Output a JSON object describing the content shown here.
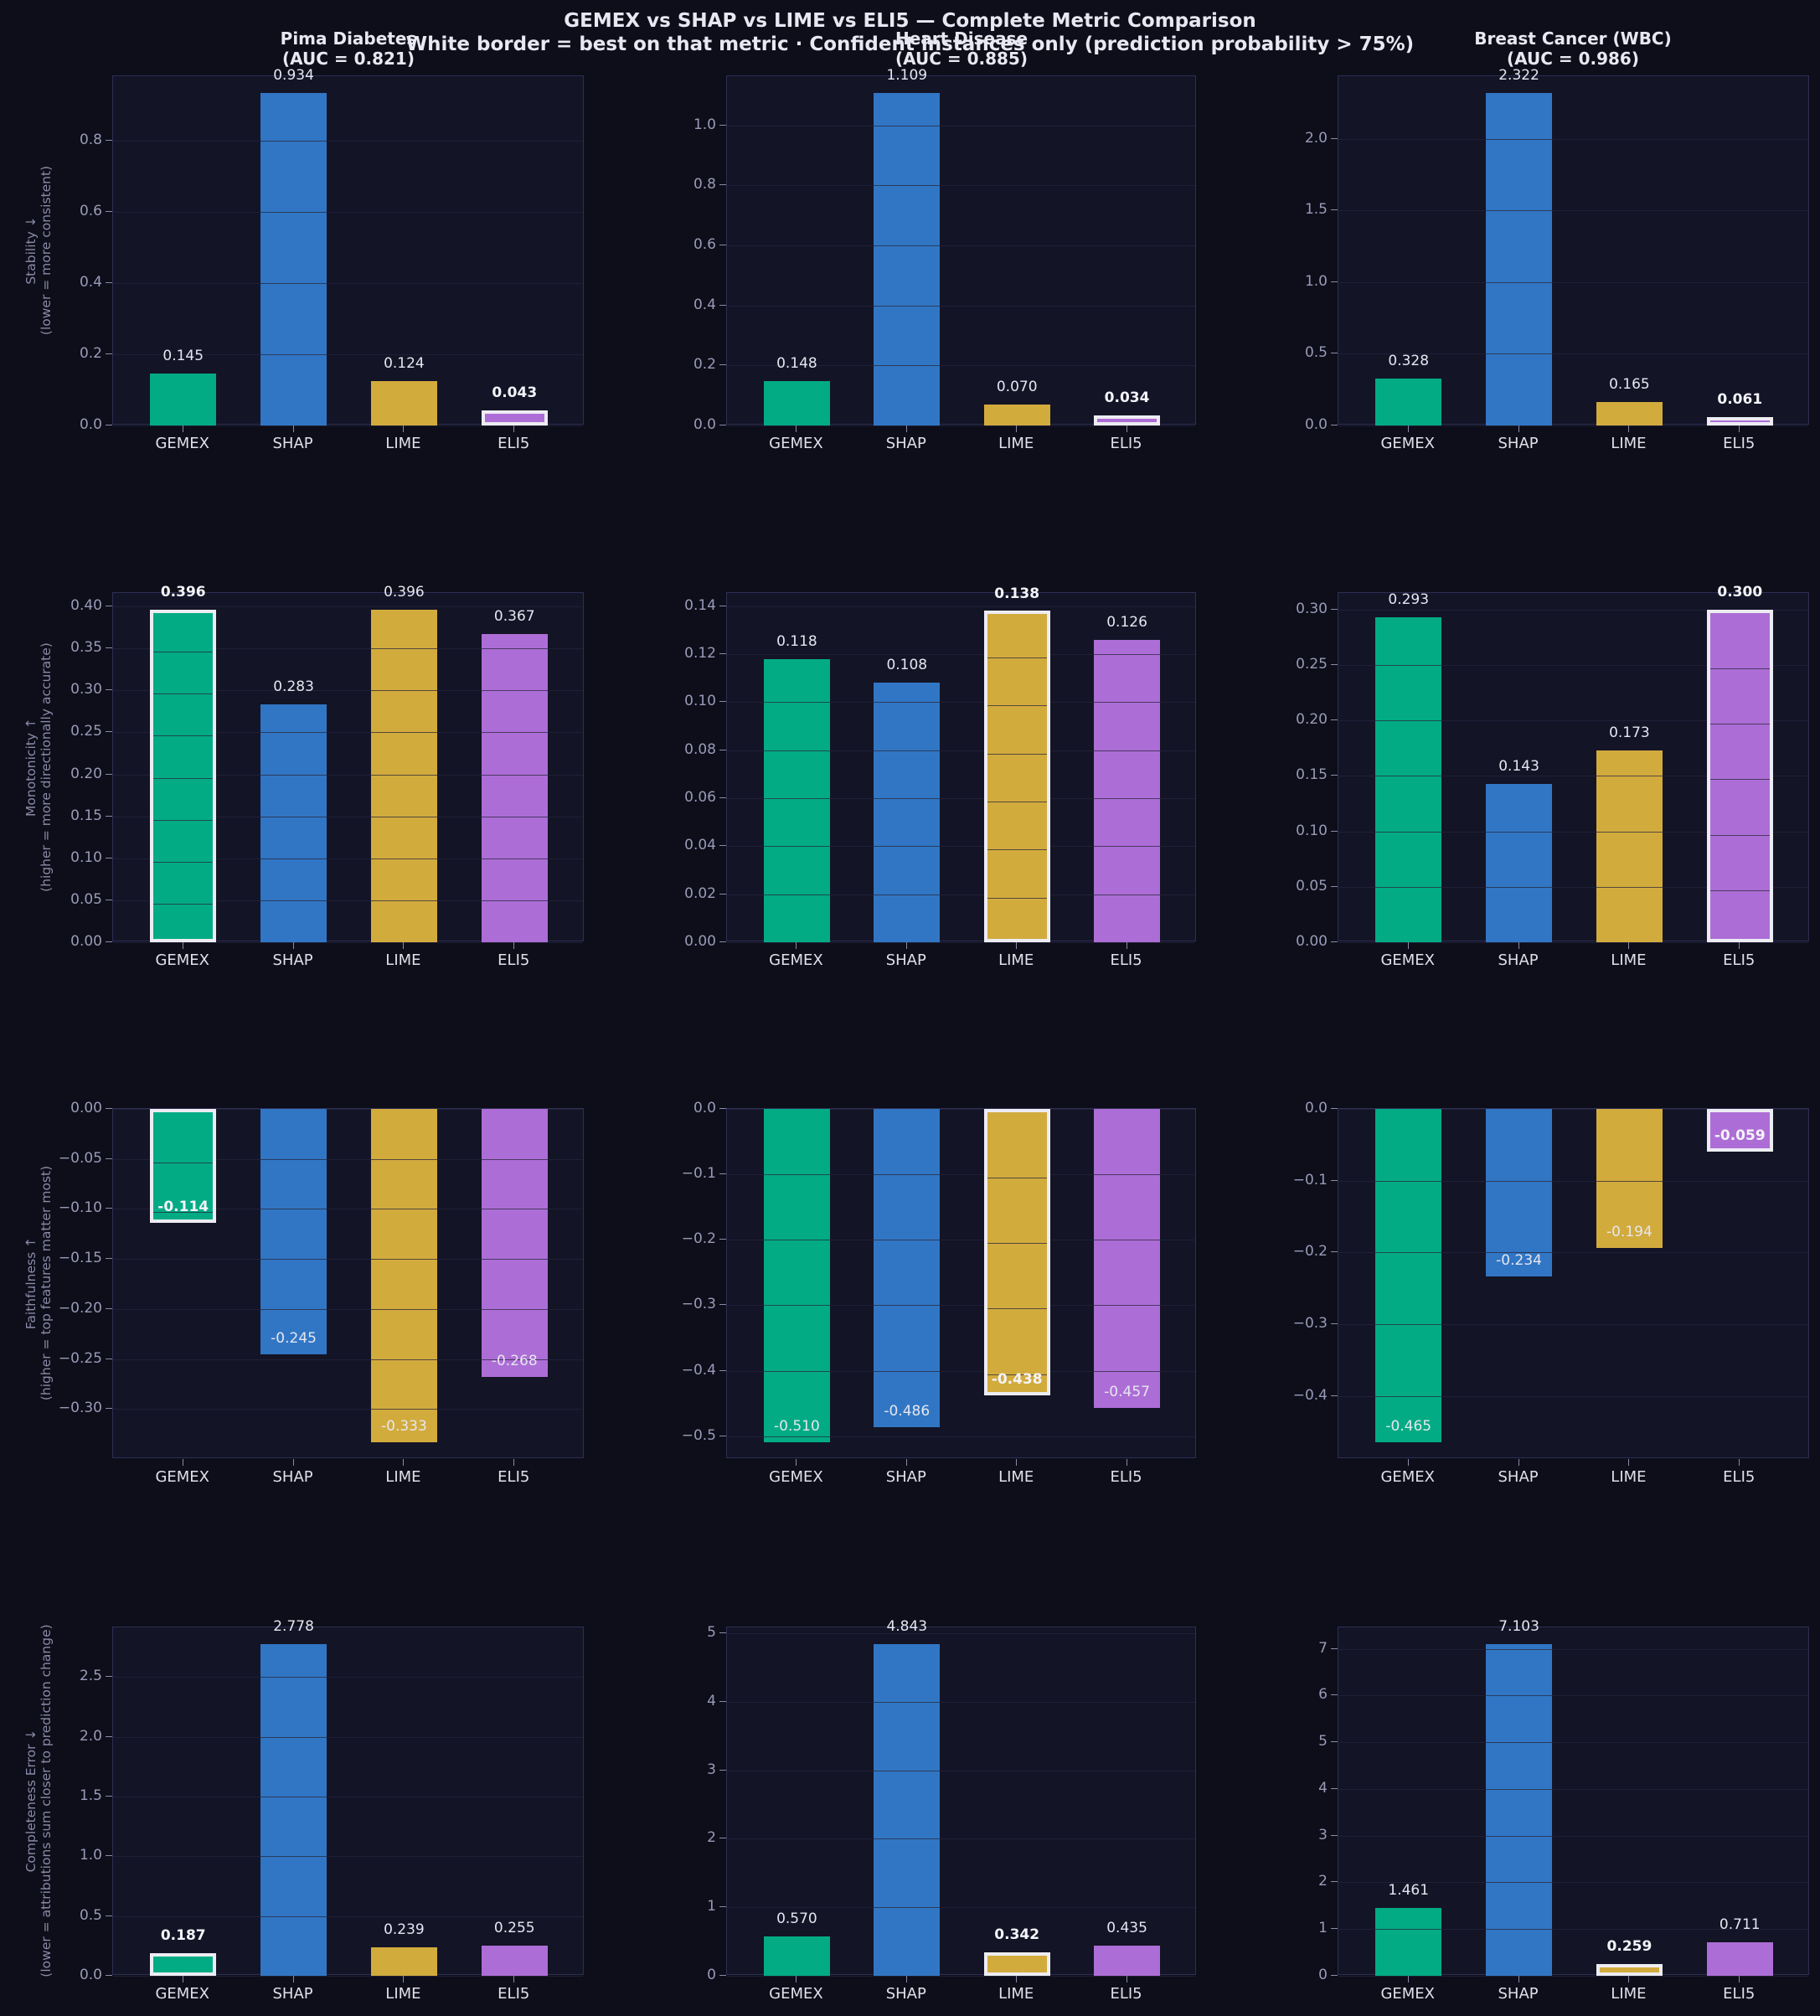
{
  "figure": {
    "title": "GEMEX vs SHAP vs LIME vs ELI5 — Complete Metric Comparison",
    "subtitle": "White border = best on that metric · Confident instances only (prediction probability > 75%)",
    "columns": [
      {
        "title": "Pima Diabetes",
        "auc": "(AUC = 0.821)"
      },
      {
        "title": "Heart Disease",
        "auc": "(AUC = 0.885)"
      },
      {
        "title": "Breast Cancer (WBC)",
        "auc": "(AUC = 0.986)"
      }
    ],
    "methods": [
      "GEMEX",
      "SHAP",
      "LIME",
      "ELI5"
    ],
    "colors": {
      "GEMEX": "#02ab84",
      "SHAP": "#3176c4",
      "LIME": "#d2ab3d",
      "ELI5": "#ad6dd6",
      "best_border": "#ececf2",
      "background": "#0d0e19",
      "axes_bg": "#131426"
    },
    "rows": [
      {
        "metric": "Stability ↓",
        "note": "(lower = more consistent)"
      },
      {
        "metric": "Monotonicity ↑",
        "note": "(higher = more directionally accurate)"
      },
      {
        "metric": "Faithfulness ↑",
        "note": "(higher = top features matter most)"
      },
      {
        "metric": "Completeness Error ↓",
        "note": "(lower = attributions sum closer to prediction change)"
      }
    ]
  },
  "chart_data": [
    {
      "type": "bar",
      "row": 0,
      "col": 0,
      "title": "Pima Diabetes (AUC = 0.821)",
      "ylabel": "Stability ↓ (lower = more consistent)",
      "categories": [
        "GEMEX",
        "SHAP",
        "LIME",
        "ELI5"
      ],
      "values": [
        0.145,
        0.934,
        0.124,
        0.043
      ],
      "labels": [
        "0.145",
        "0.934",
        "0.124",
        "0.043"
      ],
      "best": 3,
      "ylim": [
        0,
        0.98
      ],
      "yticks": [
        0.0,
        0.2,
        0.4,
        0.6,
        0.8
      ],
      "yticklabels": [
        "0.0",
        "0.2",
        "0.4",
        "0.6",
        "0.8"
      ]
    },
    {
      "type": "bar",
      "row": 0,
      "col": 1,
      "title": "Heart Disease (AUC = 0.885)",
      "ylabel": "",
      "categories": [
        "GEMEX",
        "SHAP",
        "LIME",
        "ELI5"
      ],
      "values": [
        0.148,
        1.109,
        0.07,
        0.034
      ],
      "labels": [
        "0.148",
        "1.109",
        "0.070",
        "0.034"
      ],
      "best": 3,
      "ylim": [
        0,
        1.164
      ],
      "yticks": [
        0.0,
        0.2,
        0.4,
        0.6,
        0.8,
        1.0
      ],
      "yticklabels": [
        "0.0",
        "0.2",
        "0.4",
        "0.6",
        "0.8",
        "1.0"
      ]
    },
    {
      "type": "bar",
      "row": 0,
      "col": 2,
      "title": "Breast Cancer (WBC) (AUC = 0.986)",
      "ylabel": "",
      "categories": [
        "GEMEX",
        "SHAP",
        "LIME",
        "ELI5"
      ],
      "values": [
        0.328,
        2.322,
        0.165,
        0.061
      ],
      "labels": [
        "0.328",
        "2.322",
        "0.165",
        "0.061"
      ],
      "best": 3,
      "ylim": [
        0,
        2.438
      ],
      "yticks": [
        0.0,
        0.5,
        1.0,
        1.5,
        2.0
      ],
      "yticklabels": [
        "0.0",
        "0.5",
        "1.0",
        "1.5",
        "2.0"
      ]
    },
    {
      "type": "bar",
      "row": 1,
      "col": 0,
      "ylabel": "Monotonicity ↑ (higher = more directionally accurate)",
      "categories": [
        "GEMEX",
        "SHAP",
        "LIME",
        "ELI5"
      ],
      "values": [
        0.396,
        0.283,
        0.396,
        0.367
      ],
      "labels": [
        "0.396",
        "0.283",
        "0.396",
        "0.367"
      ],
      "best": 0,
      "ylim": [
        0,
        0.416
      ],
      "yticks": [
        0.0,
        0.05,
        0.1,
        0.15,
        0.2,
        0.25,
        0.3,
        0.35,
        0.4
      ],
      "yticklabels": [
        "0.00",
        "0.05",
        "0.10",
        "0.15",
        "0.20",
        "0.25",
        "0.30",
        "0.35",
        "0.40"
      ]
    },
    {
      "type": "bar",
      "row": 1,
      "col": 1,
      "ylabel": "",
      "categories": [
        "GEMEX",
        "SHAP",
        "LIME",
        "ELI5"
      ],
      "values": [
        0.118,
        0.108,
        0.138,
        0.126
      ],
      "labels": [
        "0.118",
        "0.108",
        "0.138",
        "0.126"
      ],
      "best": 2,
      "ylim": [
        0,
        0.1455
      ],
      "yticks": [
        0.0,
        0.02,
        0.04,
        0.06,
        0.08,
        0.1,
        0.12,
        0.14
      ],
      "yticklabels": [
        "0.00",
        "0.02",
        "0.04",
        "0.06",
        "0.08",
        "0.10",
        "0.12",
        "0.14"
      ]
    },
    {
      "type": "bar",
      "row": 1,
      "col": 2,
      "ylabel": "",
      "categories": [
        "GEMEX",
        "SHAP",
        "LIME",
        "ELI5"
      ],
      "values": [
        0.293,
        0.143,
        0.173,
        0.3
      ],
      "labels": [
        "0.293",
        "0.143",
        "0.173",
        "0.300"
      ],
      "best": 3,
      "ylim": [
        0,
        0.315
      ],
      "yticks": [
        0.0,
        0.05,
        0.1,
        0.15,
        0.2,
        0.25,
        0.3
      ],
      "yticklabels": [
        "0.00",
        "0.05",
        "0.10",
        "0.15",
        "0.20",
        "0.25",
        "0.30"
      ]
    },
    {
      "type": "bar",
      "row": 2,
      "col": 0,
      "ylabel": "Faithfulness ↑ (higher = top features matter most)",
      "categories": [
        "GEMEX",
        "SHAP",
        "LIME",
        "ELI5"
      ],
      "values": [
        -0.114,
        -0.245,
        -0.333,
        -0.268
      ],
      "labels": [
        "-0.114",
        "-0.245",
        "-0.333",
        "-0.268"
      ],
      "best": 0,
      "ylim": [
        -0.35,
        0
      ],
      "yticks": [
        0.0,
        -0.05,
        -0.1,
        -0.15,
        -0.2,
        -0.25,
        -0.3
      ],
      "yticklabels": [
        "0.00",
        "−0.05",
        "−0.10",
        "−0.15",
        "−0.20",
        "−0.25",
        "−0.30"
      ]
    },
    {
      "type": "bar",
      "row": 2,
      "col": 1,
      "ylabel": "",
      "categories": [
        "GEMEX",
        "SHAP",
        "LIME",
        "ELI5"
      ],
      "values": [
        -0.51,
        -0.486,
        -0.438,
        -0.457
      ],
      "labels": [
        "-0.510",
        "-0.486",
        "-0.438",
        "-0.457"
      ],
      "best": 2,
      "ylim": [
        -0.535,
        0
      ],
      "yticks": [
        0.0,
        -0.1,
        -0.2,
        -0.3,
        -0.4,
        -0.5
      ],
      "yticklabels": [
        "0.0",
        "−0.1",
        "−0.2",
        "−0.3",
        "−0.4",
        "−0.5"
      ]
    },
    {
      "type": "bar",
      "row": 2,
      "col": 2,
      "ylabel": "",
      "categories": [
        "GEMEX",
        "SHAP",
        "LIME",
        "ELI5"
      ],
      "values": [
        -0.465,
        -0.234,
        -0.194,
        -0.059
      ],
      "labels": [
        "-0.465",
        "-0.234",
        "-0.194",
        "-0.059"
      ],
      "best": 3,
      "ylim": [
        -0.488,
        0
      ],
      "yticks": [
        0.0,
        -0.1,
        -0.2,
        -0.3,
        -0.4
      ],
      "yticklabels": [
        "0.0",
        "−0.1",
        "−0.2",
        "−0.3",
        "−0.4"
      ]
    },
    {
      "type": "bar",
      "row": 3,
      "col": 0,
      "ylabel": "Completeness Error ↓ (lower = attributions sum closer to prediction change)",
      "categories": [
        "GEMEX",
        "SHAP",
        "LIME",
        "ELI5"
      ],
      "values": [
        0.187,
        2.778,
        0.239,
        0.255
      ],
      "labels": [
        "0.187",
        "2.778",
        "0.239",
        "0.255"
      ],
      "best": 0,
      "ylim": [
        0,
        2.917
      ],
      "yticks": [
        0.0,
        0.5,
        1.0,
        1.5,
        2.0,
        2.5
      ],
      "yticklabels": [
        "0.0",
        "0.5",
        "1.0",
        "1.5",
        "2.0",
        "2.5"
      ]
    },
    {
      "type": "bar",
      "row": 3,
      "col": 1,
      "ylabel": "",
      "categories": [
        "GEMEX",
        "SHAP",
        "LIME",
        "ELI5"
      ],
      "values": [
        0.57,
        4.843,
        0.342,
        0.435
      ],
      "labels": [
        "0.570",
        "4.843",
        "0.342",
        "0.435"
      ],
      "best": 2,
      "ylim": [
        0,
        5.085
      ],
      "yticks": [
        0,
        1,
        2,
        3,
        4,
        5
      ],
      "yticklabels": [
        "0",
        "1",
        "2",
        "3",
        "4",
        "5"
      ]
    },
    {
      "type": "bar",
      "row": 3,
      "col": 2,
      "ylabel": "",
      "categories": [
        "GEMEX",
        "SHAP",
        "LIME",
        "ELI5"
      ],
      "values": [
        1.461,
        7.103,
        0.259,
        0.711
      ],
      "labels": [
        "1.461",
        "7.103",
        "0.259",
        "0.711"
      ],
      "best": 2,
      "ylim": [
        0,
        7.458
      ],
      "yticks": [
        0,
        1,
        2,
        3,
        4,
        5,
        6,
        7
      ],
      "yticklabels": [
        "0",
        "1",
        "2",
        "3",
        "4",
        "5",
        "6",
        "7"
      ]
    }
  ]
}
